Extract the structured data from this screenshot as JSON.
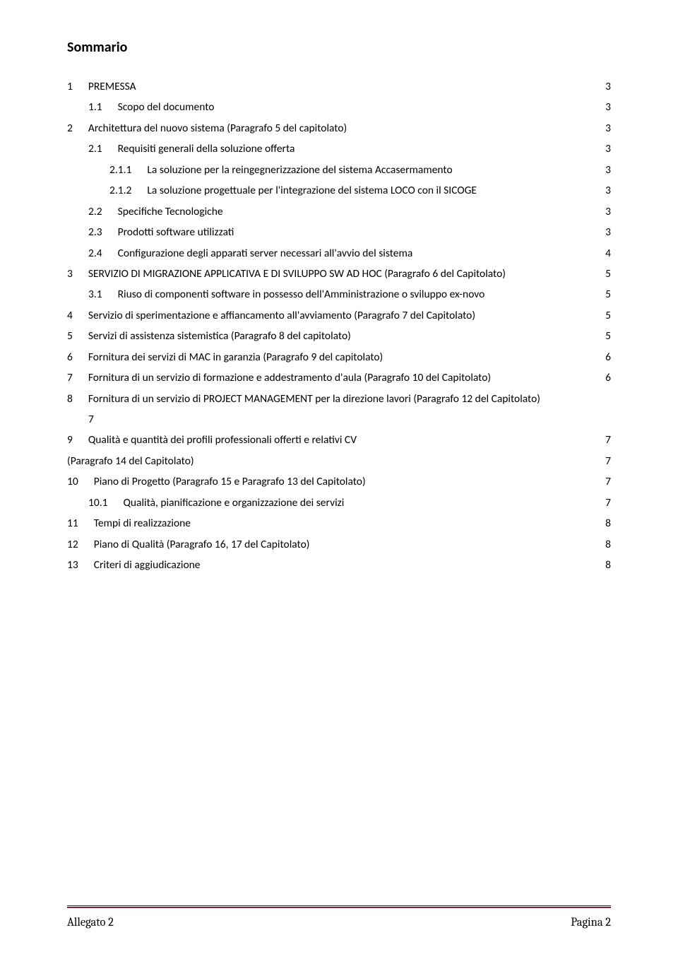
{
  "title": "Sommario",
  "toc": [
    {
      "num": "1",
      "label": "PREMESSA",
      "page": "3",
      "indent": 0
    },
    {
      "num": "1.1",
      "label": "Scopo del documento",
      "page": "3",
      "indent": 1
    },
    {
      "num": "2",
      "label": "Architettura del nuovo sistema (Paragrafo 5 del capitolato)",
      "page": "3",
      "indent": 0
    },
    {
      "num": "2.1",
      "label": "Requisiti generali della soluzione offerta",
      "page": "3",
      "indent": 1
    },
    {
      "num": "2.1.1",
      "label": "La soluzione per la reingegnerizzazione del sistema Accasermamento",
      "page": "3",
      "indent": 2
    },
    {
      "num": "2.1.2",
      "label": "La soluzione progettuale per l'integrazione del sistema LOCO con il SICOGE",
      "page": "3",
      "indent": 2
    },
    {
      "num": "2.2",
      "label": "Specifiche Tecnologiche",
      "page": "3",
      "indent": 1
    },
    {
      "num": "2.3",
      "label": "Prodotti software utilizzati",
      "page": "3",
      "indent": 1
    },
    {
      "num": "2.4",
      "label": "Configurazione degli apparati server necessari all'avvio del sistema",
      "page": "4",
      "indent": 1
    },
    {
      "num": "3",
      "label": "SERVIZIO DI MIGRAZIONE APPLICATIVA E DI SVILUPPO SW   AD HOC (Paragrafo 6 del Capitolato)",
      "page": "5",
      "indent": 0
    },
    {
      "num": "3.1",
      "label": "Riuso di componenti software in possesso dell'Amministrazione o sviluppo ex-novo",
      "page": "5",
      "indent": 1
    },
    {
      "num": "4",
      "label": "Servizio di sperimentazione e affiancamento all'avviamento (Paragrafo 7 del Capitolato)",
      "page": "5",
      "indent": 0
    },
    {
      "num": "5",
      "label": "Servizi di assistenza sistemistica (Paragrafo 8 del capitolato)",
      "page": "5",
      "indent": 0
    },
    {
      "num": "6",
      "label": "Fornitura dei servizi di MAC in garanzia (Paragrafo 9 del capitolato)",
      "page": "6",
      "indent": 0
    },
    {
      "num": "7",
      "label": "Fornitura di un servizio di formazione e addestramento d'aula (Paragrafo 10 del Capitolato)",
      "page": "6",
      "indent": 0
    },
    {
      "num": "8",
      "label_line1": "Fornitura di un servizio di PROJECT MANAGEMENT per la direzione lavori (Paragrafo 12 del Capitolato)",
      "label_line2": "7",
      "page": "",
      "indent": 0,
      "wrap": true
    },
    {
      "num": "9",
      "label": "Qualità e quantità dei profili professionali offerti e relativi CV",
      "page": "7",
      "indent": 0
    },
    {
      "num": "",
      "label": "(Paragrafo 14 del Capitolato)",
      "page": "7",
      "indent": 0,
      "nonum": true
    },
    {
      "num": "10",
      "label": "Piano di Progetto (Paragrafo 15 e  Paragrafo 13 del Capitolato)",
      "page": "7",
      "indent": 0
    },
    {
      "num": "10.1",
      "label": "Qualità, pianificazione e organizzazione dei servizi",
      "page": "7",
      "indent": 1
    },
    {
      "num": "11",
      "label": "Tempi di realizzazione",
      "page": "8",
      "indent": 0
    },
    {
      "num": "12",
      "label": "Piano di Qualità (Paragrafo 16, 17 del Capitolato)",
      "page": "8",
      "indent": 0
    },
    {
      "num": "13",
      "label": "Criteri di aggiudicazione",
      "page": "8",
      "indent": 0
    }
  ],
  "footer": {
    "left": "Allegato 2",
    "right": "Pagina 2",
    "rule_color": "#8b1a2b"
  },
  "colors": {
    "text": "#000000",
    "background": "#ffffff"
  },
  "typography": {
    "body_family": "Calibri",
    "body_size_pt": 11,
    "title_size_pt": 14,
    "title_weight": "bold",
    "footer_family": "Cambria"
  }
}
